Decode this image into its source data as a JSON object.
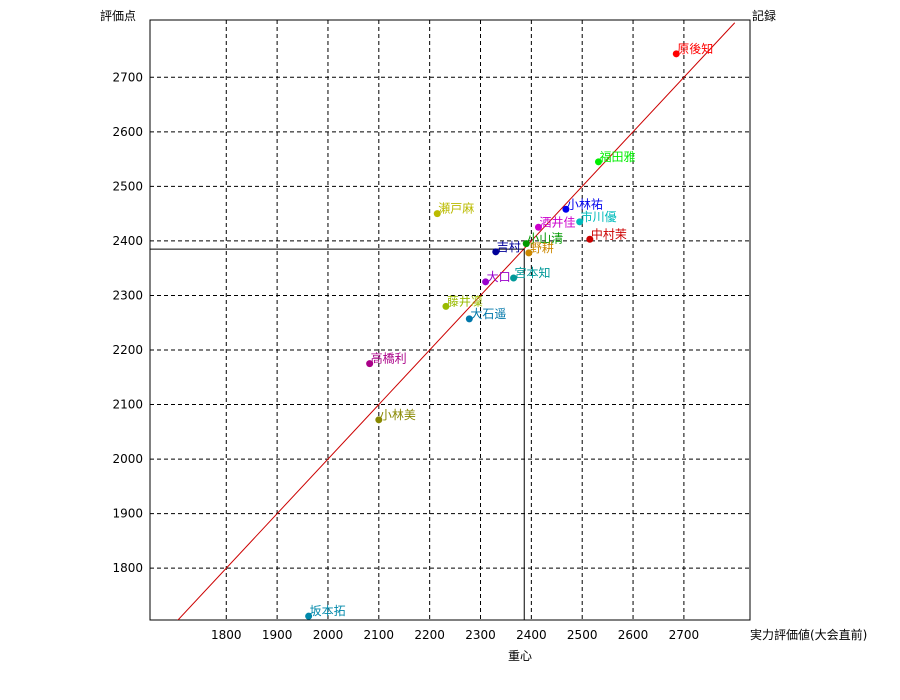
{
  "chart_data": {
    "type": "scatter",
    "xlabel": "実力評価値(大会直前)",
    "ylabel": "評価点",
    "corner_label": "記録",
    "centroid_label": "重心",
    "xlim": [
      1650,
      2830
    ],
    "ylim": [
      1705,
      2805
    ],
    "x_ticks": [
      1800,
      1900,
      2000,
      2100,
      2200,
      2300,
      2400,
      2500,
      2600,
      2700
    ],
    "y_ticks": [
      1800,
      1900,
      2000,
      2100,
      2200,
      2300,
      2400,
      2500,
      2600,
      2700
    ],
    "grid": true,
    "reference_line": {
      "color": "#cc0000",
      "from": [
        1700,
        1700
      ],
      "to": [
        2800,
        2800
      ]
    },
    "centroid": {
      "x": 2386,
      "y": 2385
    },
    "points": [
      {
        "name": "原後知",
        "x": 2685,
        "y": 2743,
        "color": "#ff0000"
      },
      {
        "name": "福田雅",
        "x": 2532,
        "y": 2545,
        "color": "#00ee00"
      },
      {
        "name": "小林祐",
        "x": 2468,
        "y": 2458,
        "color": "#0000ee"
      },
      {
        "name": "瀬戸麻",
        "x": 2215,
        "y": 2450,
        "color": "#bbbb00"
      },
      {
        "name": "市川優",
        "x": 2495,
        "y": 2435,
        "color": "#00bbbb"
      },
      {
        "name": "酒井佳",
        "x": 2414,
        "y": 2425,
        "color": "#cc00cc"
      },
      {
        "name": "中村茉",
        "x": 2515,
        "y": 2403,
        "color": "#cc0000"
      },
      {
        "name": "小山清",
        "x": 2390,
        "y": 2395,
        "color": "#009900"
      },
      {
        "name": "吉村",
        "x": 2330,
        "y": 2380,
        "color": "#000099"
      },
      {
        "name": "野耕",
        "x": 2395,
        "y": 2378,
        "color": "#cc8800"
      },
      {
        "name": "大口",
        "x": 2310,
        "y": 2325,
        "color": "#9900cc"
      },
      {
        "name": "宮本知",
        "x": 2365,
        "y": 2332,
        "color": "#009999"
      },
      {
        "name": "藤井凜",
        "x": 2232,
        "y": 2280,
        "color": "#99bb00"
      },
      {
        "name": "大石遥",
        "x": 2278,
        "y": 2257,
        "color": "#0077aa"
      },
      {
        "name": "高橋利",
        "x": 2082,
        "y": 2175,
        "color": "#aa0088"
      },
      {
        "name": "小林美",
        "x": 2100,
        "y": 2072,
        "color": "#888800"
      },
      {
        "name": "坂本拓",
        "x": 1962,
        "y": 1712,
        "color": "#0088aa"
      }
    ]
  }
}
